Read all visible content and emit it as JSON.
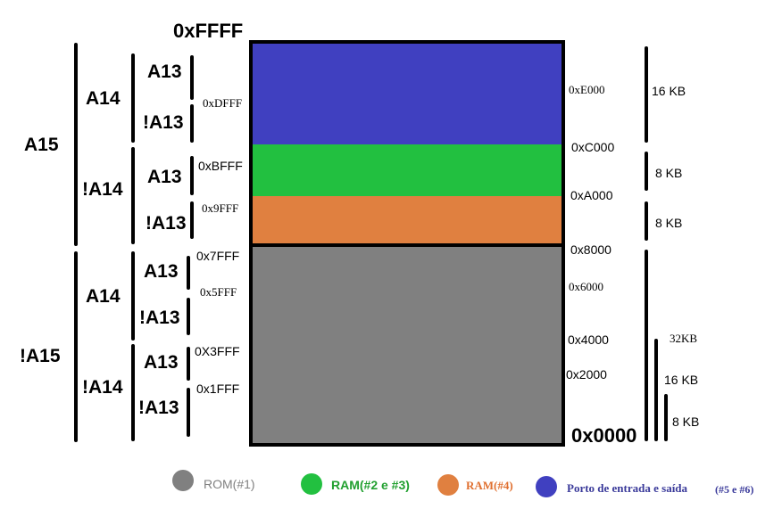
{
  "colors": {
    "rom": "#808080",
    "ram23": "#22c040",
    "ram4": "#e08040",
    "io": "#4040c0",
    "ram23_text": "#22a030",
    "ram4_text": "#e07030",
    "io_text": "#3a3a9a"
  },
  "top_address": "0xFFFF",
  "bottom_address": "0x0000",
  "address_lines": {
    "a15": "A15",
    "not_a15": "!A15",
    "a14_upper": "A14",
    "not_a14_upper": "!A14",
    "a14_lower": "A14",
    "not_a14_lower": "!A14",
    "a13_1": "A13",
    "not_a13_1": "!A13",
    "a13_2": "A13",
    "not_a13_2": "!A13",
    "a13_3": "A13",
    "not_a13_3": "!A13",
    "a13_4": "A13",
    "not_a13_4": "!A13"
  },
  "left_addresses": {
    "dfff": "0xDFFF",
    "bfff": "0xBFFF",
    "9fff": "0x9FFF",
    "7fff": "0x7FFF",
    "5fff": "0x5FFF",
    "3fff": "0X3FFF",
    "1fff": "0x1FFF"
  },
  "right_addresses": {
    "e000": "0xE000",
    "c000": "0xC000",
    "a000": "0xA000",
    "8000": "0x8000",
    "6000": "0x6000",
    "4000": "0x4000",
    "2000": "0x2000"
  },
  "sizes": {
    "io": "16 KB",
    "ram23": "8 KB",
    "ram4": "8 KB",
    "rom_total": "32KB",
    "rom_16": "16 KB",
    "rom_8": "8 KB"
  },
  "legend": {
    "rom": "ROM(#1)",
    "ram23": "RAM(#2 e #3)",
    "ram4": "RAM(#4)",
    "io": "Porto de entrada e saída",
    "io_suffix": "(#5 e #6)"
  }
}
